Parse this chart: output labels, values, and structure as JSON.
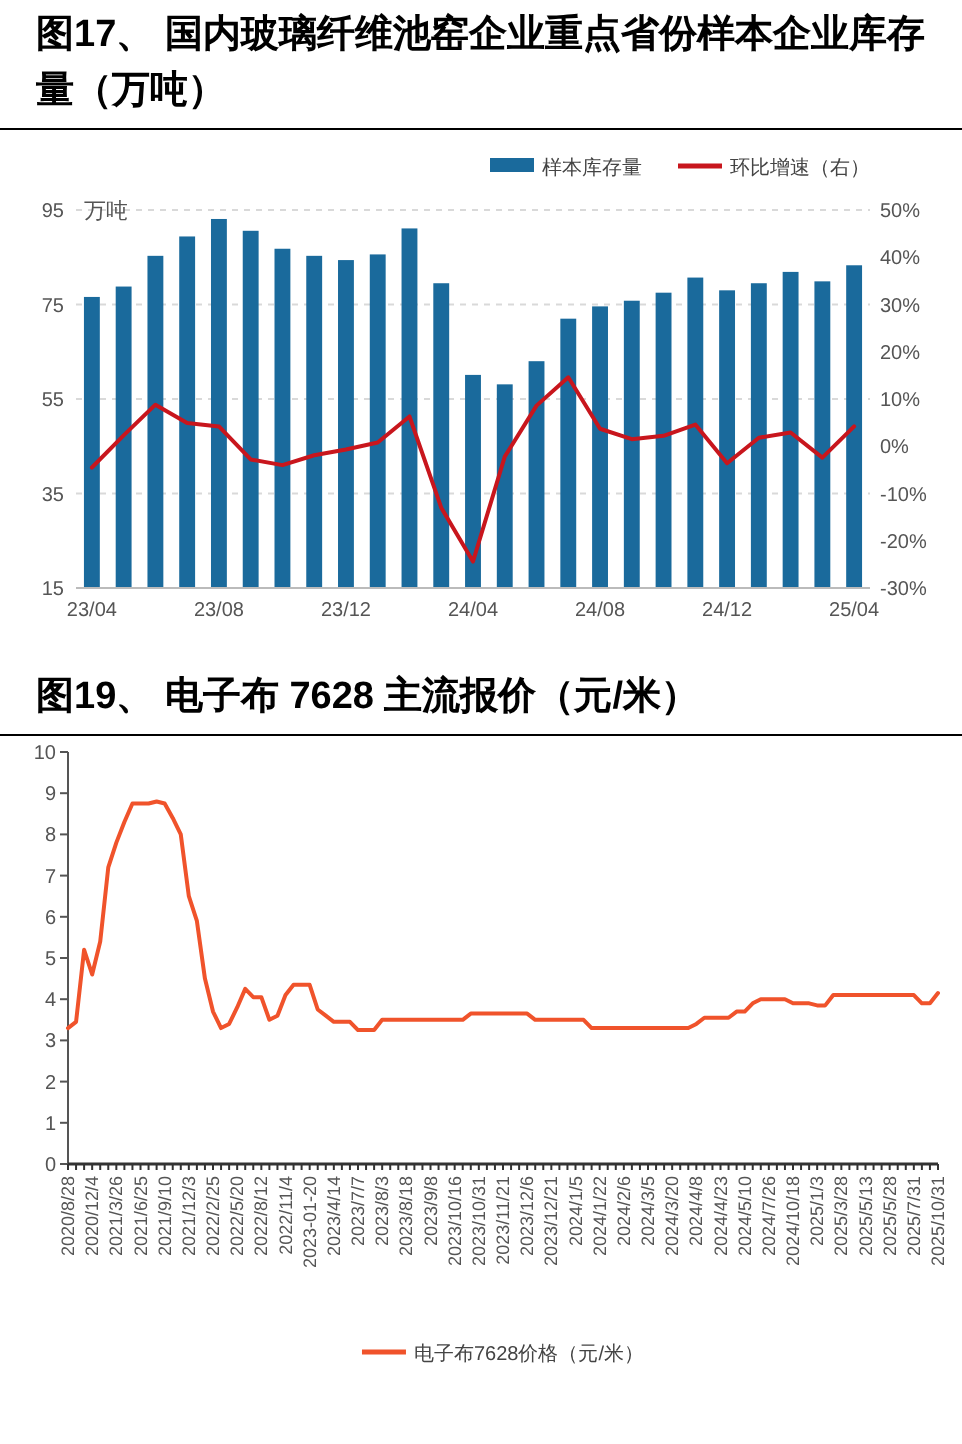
{
  "chart_data": [
    {
      "type": "bar",
      "title": "图17、 国内玻璃纤维池窑企业重点省份样本企业库存量（万吨）",
      "ylabel": "万吨",
      "categories": [
        "23/04",
        null,
        null,
        null,
        "23/08",
        null,
        null,
        null,
        "23/12",
        null,
        null,
        null,
        "24/04",
        null,
        null,
        null,
        "24/08",
        null,
        null,
        null,
        "24/12",
        null,
        null,
        null,
        "25/04"
      ],
      "series": [
        {
          "name": "样本库存量",
          "type": "bar",
          "color": "#1a6a9c",
          "values": [
            76.6,
            78.8,
            85.3,
            89.4,
            93.1,
            90.6,
            86.8,
            85.3,
            84.4,
            85.6,
            91.1,
            79.5,
            60.1,
            58.1,
            63.0,
            72.0,
            74.6,
            75.8,
            77.5,
            80.7,
            78.0,
            79.5,
            81.9,
            79.9,
            83.3
          ]
        },
        {
          "name": "环比增速（右）",
          "type": "line",
          "axis": "y2",
          "color": "#c8161d",
          "values": [
            -4.5,
            2.3,
            8.8,
            4.9,
            4.2,
            -2.8,
            -4.0,
            -1.9,
            -0.7,
            0.8,
            6.3,
            -13.0,
            -24.4,
            -2.2,
            8.6,
            14.6,
            3.7,
            1.5,
            2.2,
            4.6,
            -3.6,
            1.8,
            2.9,
            -2.4,
            4.2
          ]
        }
      ],
      "ylim": [
        15,
        95
      ],
      "yticks": [
        15,
        35,
        55,
        75,
        95
      ],
      "y2lim": [
        -30,
        50
      ],
      "y2ticks": [
        {
          "value": -30,
          "label": "-30%"
        },
        {
          "value": -20,
          "label": "-20%"
        },
        {
          "value": -10,
          "label": "-10%"
        },
        {
          "value": 0,
          "label": "0%"
        },
        {
          "value": 10,
          "label": "10%"
        },
        {
          "value": 20,
          "label": "20%"
        },
        {
          "value": 30,
          "label": "30%"
        },
        {
          "value": 40,
          "label": "40%"
        },
        {
          "value": 50,
          "label": "50%"
        }
      ],
      "grid": "y",
      "legend": "top right"
    },
    {
      "type": "line",
      "title": "图19、 电子布 7628 主流报价（元/米）",
      "categories": [
        "2020/8/28",
        null,
        null,
        "2020/12/4",
        null,
        null,
        "2021/3/26",
        null,
        null,
        "2021/6/25",
        null,
        null,
        "2021/9/10",
        null,
        null,
        "2021/12/3",
        null,
        null,
        "2022/2/25",
        null,
        null,
        "2022/5/20",
        null,
        null,
        "2022/8/12",
        null,
        null,
        "2022/11/4",
        null,
        null,
        "2023-01-20",
        null,
        null,
        "2023/4/14",
        null,
        null,
        "2023/7/7",
        null,
        null,
        "2023/8/3",
        null,
        null,
        "2023/8/18",
        null,
        null,
        "2023/9/8",
        null,
        null,
        "2023/10/16",
        null,
        null,
        "2023/10/31",
        null,
        null,
        "2023/11/21",
        null,
        null,
        "2023/12/6",
        null,
        null,
        "2023/12/21",
        null,
        null,
        "2024/1/5",
        null,
        null,
        "2024/1/22",
        null,
        null,
        "2024/2/6",
        null,
        null,
        "2024/3/5",
        null,
        null,
        "2024/3/20",
        null,
        null,
        "2024/4/8",
        null,
        null,
        "2024/4/23",
        null,
        null,
        "2024/5/10",
        null,
        null,
        "2024/7/26",
        null,
        null,
        "2024/10/18",
        null,
        null,
        "2025/1/3",
        null,
        null,
        "2025/3/28",
        null,
        null,
        "2025/5/13",
        null,
        null,
        "2025/5/28",
        null,
        null,
        "2025/7/31",
        null,
        null,
        "2025/10/31"
      ],
      "series": [
        {
          "name": "电子布7628价格（元/米）",
          "color": "#f0532b",
          "values": [
            3.3,
            3.45,
            5.2,
            4.6,
            5.4,
            7.2,
            7.8,
            8.3,
            8.75,
            8.75,
            8.75,
            8.8,
            8.75,
            8.4,
            8.0,
            6.5,
            5.9,
            4.5,
            3.7,
            3.3,
            3.4,
            3.8,
            4.25,
            4.05,
            4.05,
            3.5,
            3.6,
            4.1,
            4.35,
            4.35,
            4.35,
            3.75,
            3.6,
            3.45,
            3.45,
            3.45,
            3.25,
            3.25,
            3.25,
            3.5,
            3.5,
            3.5,
            3.5,
            3.5,
            3.5,
            3.5,
            3.5,
            3.5,
            3.5,
            3.5,
            3.65,
            3.65,
            3.65,
            3.65,
            3.65,
            3.65,
            3.65,
            3.65,
            3.5,
            3.5,
            3.5,
            3.5,
            3.5,
            3.5,
            3.5,
            3.3,
            3.3,
            3.3,
            3.3,
            3.3,
            3.3,
            3.3,
            3.3,
            3.3,
            3.3,
            3.3,
            3.3,
            3.3,
            3.4,
            3.55,
            3.55,
            3.55,
            3.55,
            3.7,
            3.7,
            3.9,
            4.0,
            4.0,
            4.0,
            4.0,
            3.9,
            3.9,
            3.9,
            3.85,
            3.85,
            4.1,
            4.1,
            4.1,
            4.1,
            4.1,
            4.1,
            4.1,
            4.1,
            4.1,
            4.1,
            4.1,
            3.9,
            3.9,
            4.15
          ]
        }
      ],
      "ylim": [
        0,
        10
      ],
      "yticks": [
        0,
        1,
        2,
        3,
        4,
        5,
        6,
        7,
        8,
        9,
        10
      ],
      "legend": "bottom",
      "line_style": "solid"
    }
  ]
}
